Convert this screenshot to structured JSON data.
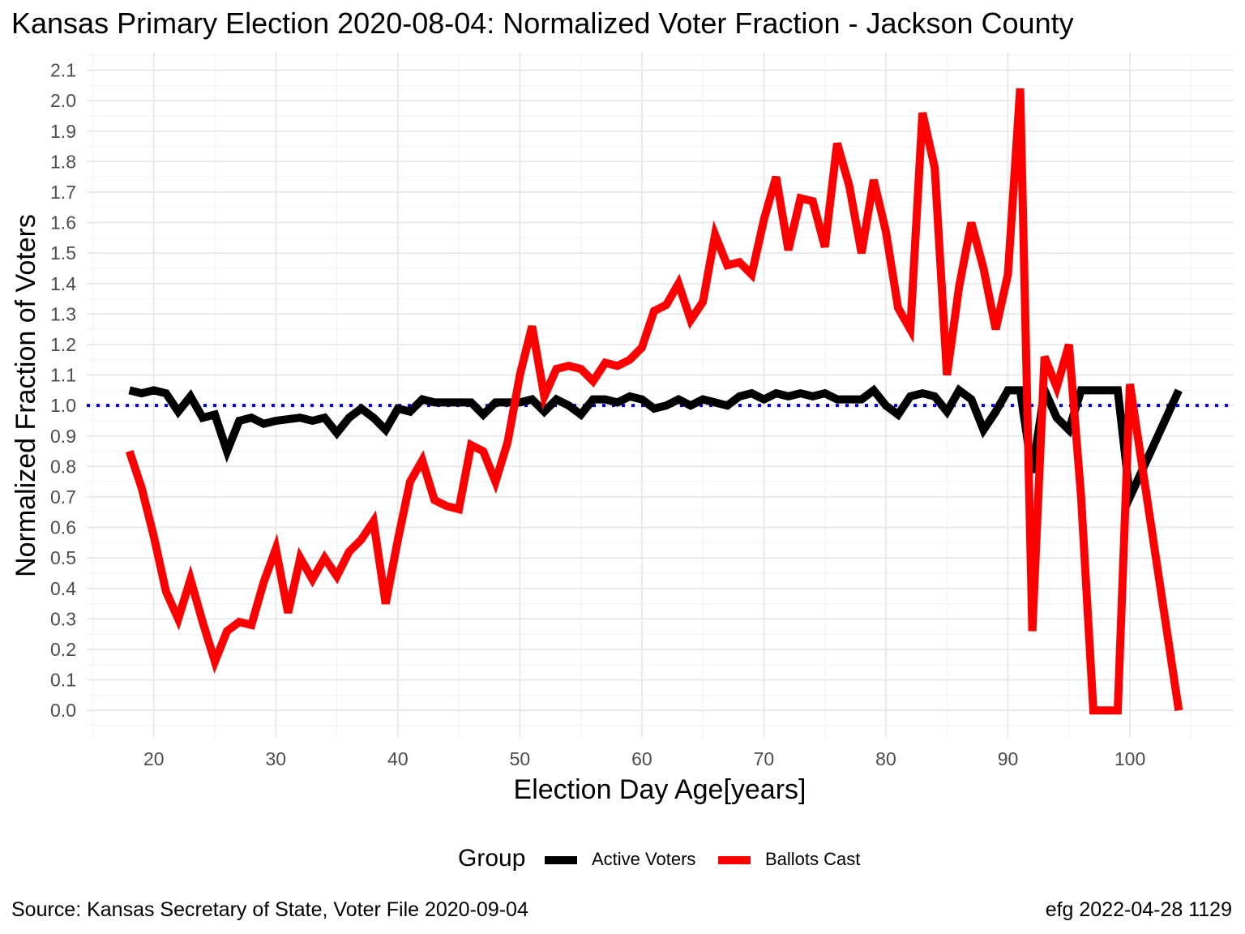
{
  "chart_data": {
    "type": "line",
    "title": "Kansas Primary Election 2020-08-04:  Normalized Voter Fraction - Jackson County",
    "xlabel": "Election Day Age[years]",
    "ylabel": "Normalized Fraction of Voters",
    "xlim": [
      14.5,
      108.5
    ],
    "ylim": [
      -0.09,
      2.16
    ],
    "x_ticks": [
      "20",
      "30",
      "40",
      "50",
      "60",
      "70",
      "80",
      "90",
      "100"
    ],
    "y_ticks": [
      "0.0",
      "0.1",
      "0.2",
      "0.3",
      "0.4",
      "0.5",
      "0.6",
      "0.7",
      "0.8",
      "0.9",
      "1.0",
      "1.1",
      "1.2",
      "1.3",
      "1.4",
      "1.5",
      "1.6",
      "1.7",
      "1.8",
      "1.9",
      "2.0",
      "2.1"
    ],
    "grid": true,
    "reference_line": {
      "y": 1.0,
      "color": "#0000ff",
      "style": "dotted"
    },
    "legend": {
      "title": "Group",
      "position": "bottom"
    },
    "series": [
      {
        "name": "Active Voters",
        "color": "#000000",
        "points": [
          [
            18,
            1.05
          ],
          [
            19,
            1.04
          ],
          [
            20,
            1.05
          ],
          [
            21,
            1.04
          ],
          [
            22,
            0.98
          ],
          [
            23,
            1.03
          ],
          [
            24,
            0.96
          ],
          [
            25,
            0.97
          ],
          [
            26,
            0.85
          ],
          [
            27,
            0.95
          ],
          [
            28,
            0.96
          ],
          [
            29,
            0.94
          ],
          [
            30,
            0.95
          ],
          [
            31,
            0.955
          ],
          [
            32,
            0.96
          ],
          [
            33,
            0.95
          ],
          [
            34,
            0.96
          ],
          [
            35,
            0.91
          ],
          [
            36,
            0.96
          ],
          [
            37,
            0.99
          ],
          [
            38,
            0.96
          ],
          [
            39,
            0.92
          ],
          [
            40,
            0.99
          ],
          [
            41,
            0.98
          ],
          [
            42,
            1.02
          ],
          [
            43,
            1.01
          ],
          [
            44,
            1.01
          ],
          [
            45,
            1.01
          ],
          [
            46,
            1.01
          ],
          [
            47,
            0.97
          ],
          [
            48,
            1.01
          ],
          [
            49,
            1.01
          ],
          [
            50,
            1.01
          ],
          [
            51,
            1.02
          ],
          [
            52,
            0.98
          ],
          [
            53,
            1.02
          ],
          [
            54,
            1.0
          ],
          [
            55,
            0.97
          ],
          [
            56,
            1.02
          ],
          [
            57,
            1.02
          ],
          [
            58,
            1.01
          ],
          [
            59,
            1.03
          ],
          [
            60,
            1.02
          ],
          [
            61,
            0.99
          ],
          [
            62,
            1.0
          ],
          [
            63,
            1.02
          ],
          [
            64,
            1.0
          ],
          [
            65,
            1.02
          ],
          [
            66,
            1.01
          ],
          [
            67,
            1.0
          ],
          [
            68,
            1.03
          ],
          [
            69,
            1.04
          ],
          [
            70,
            1.02
          ],
          [
            71,
            1.04
          ],
          [
            72,
            1.03
          ],
          [
            73,
            1.04
          ],
          [
            74,
            1.03
          ],
          [
            75,
            1.04
          ],
          [
            76,
            1.02
          ],
          [
            77,
            1.02
          ],
          [
            78,
            1.02
          ],
          [
            79,
            1.05
          ],
          [
            80,
            1.0
          ],
          [
            81,
            0.97
          ],
          [
            82,
            1.03
          ],
          [
            83,
            1.04
          ],
          [
            84,
            1.03
          ],
          [
            85,
            0.98
          ],
          [
            86,
            1.05
          ],
          [
            87,
            1.02
          ],
          [
            88,
            0.92
          ],
          [
            89,
            0.98
          ],
          [
            90,
            1.05
          ],
          [
            91,
            1.05
          ],
          [
            92,
            0.78
          ],
          [
            93,
            1.05
          ],
          [
            94,
            0.96
          ],
          [
            95,
            0.92
          ],
          [
            96,
            1.05
          ],
          [
            97,
            1.05
          ],
          [
            98,
            1.05
          ],
          [
            99,
            1.05
          ],
          [
            100,
            0.7
          ],
          [
            104,
            1.05
          ]
        ]
      },
      {
        "name": "Ballots Cast",
        "color": "#ff0000",
        "points": [
          [
            18,
            0.85
          ],
          [
            19,
            0.73
          ],
          [
            20,
            0.57
          ],
          [
            21,
            0.39
          ],
          [
            22,
            0.3
          ],
          [
            23,
            0.43
          ],
          [
            24,
            0.29
          ],
          [
            25,
            0.16
          ],
          [
            26,
            0.26
          ],
          [
            27,
            0.29
          ],
          [
            28,
            0.28
          ],
          [
            29,
            0.42
          ],
          [
            30,
            0.53
          ],
          [
            31,
            0.32
          ],
          [
            32,
            0.5
          ],
          [
            33,
            0.43
          ],
          [
            34,
            0.5
          ],
          [
            35,
            0.44
          ],
          [
            36,
            0.52
          ],
          [
            37,
            0.56
          ],
          [
            38,
            0.62
          ],
          [
            39,
            0.35
          ],
          [
            40,
            0.56
          ],
          [
            41,
            0.75
          ],
          [
            42,
            0.82
          ],
          [
            43,
            0.69
          ],
          [
            44,
            0.67
          ],
          [
            45,
            0.66
          ],
          [
            46,
            0.87
          ],
          [
            47,
            0.85
          ],
          [
            48,
            0.75
          ],
          [
            49,
            0.88
          ],
          [
            50,
            1.1
          ],
          [
            51,
            1.26
          ],
          [
            52,
            1.03
          ],
          [
            53,
            1.12
          ],
          [
            54,
            1.13
          ],
          [
            55,
            1.12
          ],
          [
            56,
            1.08
          ],
          [
            57,
            1.14
          ],
          [
            58,
            1.13
          ],
          [
            59,
            1.15
          ],
          [
            60,
            1.19
          ],
          [
            61,
            1.31
          ],
          [
            62,
            1.33
          ],
          [
            63,
            1.4
          ],
          [
            64,
            1.28
          ],
          [
            65,
            1.34
          ],
          [
            66,
            1.56
          ],
          [
            67,
            1.46
          ],
          [
            68,
            1.47
          ],
          [
            69,
            1.43
          ],
          [
            70,
            1.61
          ],
          [
            71,
            1.75
          ],
          [
            72,
            1.51
          ],
          [
            73,
            1.68
          ],
          [
            74,
            1.67
          ],
          [
            75,
            1.52
          ],
          [
            76,
            1.86
          ],
          [
            77,
            1.72
          ],
          [
            78,
            1.5
          ],
          [
            79,
            1.74
          ],
          [
            80,
            1.57
          ],
          [
            81,
            1.32
          ],
          [
            82,
            1.25
          ],
          [
            83,
            1.96
          ],
          [
            84,
            1.78
          ],
          [
            85,
            1.1
          ],
          [
            86,
            1.39
          ],
          [
            87,
            1.6
          ],
          [
            88,
            1.45
          ],
          [
            89,
            1.25
          ],
          [
            90,
            1.43
          ],
          [
            91,
            2.04
          ],
          [
            92,
            0.26
          ],
          [
            93,
            1.16
          ],
          [
            94,
            1.06
          ],
          [
            95,
            1.2
          ],
          [
            96,
            0.7
          ],
          [
            97,
            0.0
          ],
          [
            98,
            0.0
          ],
          [
            99,
            0.0
          ],
          [
            100,
            1.07
          ],
          [
            104,
            0.0
          ]
        ]
      }
    ]
  },
  "footer": {
    "source": "Source:  Kansas Secretary of State, Voter File  2020-09-04",
    "credit": "efg 2022-04-28 1129"
  }
}
